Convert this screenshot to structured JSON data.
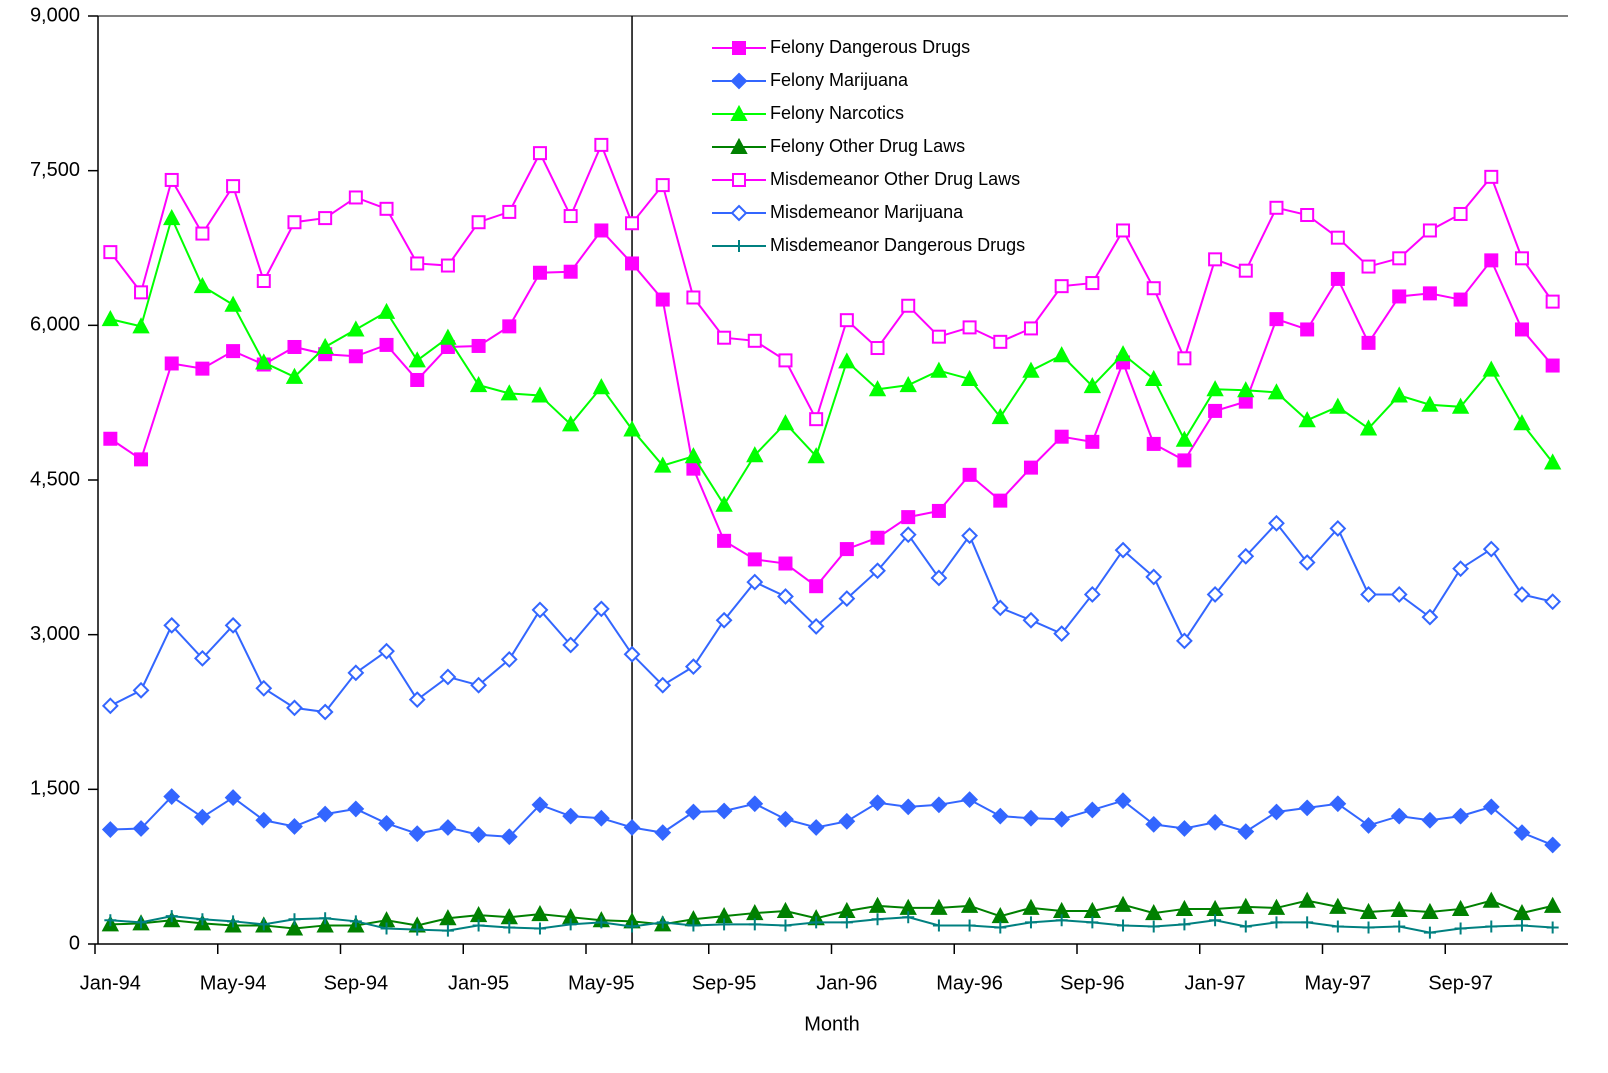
{
  "chart_data": {
    "type": "line",
    "x_label": "Month",
    "categories": [
      "Jan-94",
      null,
      null,
      null,
      "May-94",
      null,
      null,
      null,
      "Sep-94",
      null,
      null,
      null,
      "Jan-95",
      null,
      null,
      null,
      "May-95",
      null,
      null,
      null,
      "Sep-95",
      null,
      null,
      null,
      "Jan-96",
      null,
      null,
      null,
      "May-96",
      null,
      null,
      null,
      "Sep-96",
      null,
      null,
      null,
      "Jan-97",
      null,
      null,
      null,
      "May-97",
      null,
      null,
      null,
      "Sep-97",
      null,
      null,
      null
    ],
    "ylim": [
      0,
      9000
    ],
    "yticks": [
      0,
      {
        "value": 1500,
        "label": "1,500"
      },
      {
        "value": 3000,
        "label": "3,000"
      },
      {
        "value": 4500,
        "label": "4,500"
      },
      {
        "value": 6000,
        "label": "6,000"
      },
      {
        "value": 7500,
        "label": "7,500"
      },
      {
        "value": 9000,
        "label": "9,000"
      }
    ],
    "series": [
      {
        "name": "Felony Dangerous Drugs",
        "color": "#ff00ff",
        "marker": "square",
        "values": [
          4900,
          4700,
          5630,
          5580,
          5750,
          5620,
          5790,
          5720,
          5700,
          5810,
          5470,
          5790,
          5800,
          5990,
          6510,
          6520,
          6920,
          6600,
          6250,
          4610,
          3910,
          3730,
          3690,
          3470,
          3830,
          3940,
          4140,
          4200,
          4550,
          4300,
          4620,
          4920,
          4870,
          5640,
          4850,
          4690,
          5170,
          5260,
          6060,
          5960,
          6450,
          5830,
          6280,
          6310,
          6250,
          6630,
          5960,
          5610
        ]
      },
      {
        "name": "Felony Marijuana",
        "color": "#3366ff",
        "marker": "diamond",
        "values": [
          1110,
          1120,
          1430,
          1230,
          1420,
          1200,
          1140,
          1260,
          1310,
          1170,
          1070,
          1130,
          1060,
          1040,
          1350,
          1240,
          1220,
          1130,
          1080,
          1280,
          1290,
          1360,
          1210,
          1130,
          1190,
          1370,
          1330,
          1350,
          1400,
          1240,
          1220,
          1210,
          1300,
          1390,
          1160,
          1120,
          1180,
          1090,
          1280,
          1320,
          1360,
          1150,
          1240,
          1200,
          1240,
          1330,
          1080,
          960
        ]
      },
      {
        "name": "Felony Narcotics",
        "color": "#00ff00",
        "marker": "triangle",
        "values": [
          6060,
          5990,
          7040,
          6380,
          6200,
          5640,
          5500,
          5790,
          5960,
          6130,
          5660,
          5880,
          5420,
          5340,
          5320,
          5040,
          5400,
          4990,
          4640,
          4730,
          4260,
          4740,
          5050,
          4730,
          5650,
          5380,
          5420,
          5560,
          5480,
          5110,
          5560,
          5710,
          5410,
          5720,
          5480,
          4890,
          5380,
          5370,
          5350,
          5080,
          5210,
          5000,
          5320,
          5230,
          5210,
          5570,
          5050,
          4670
        ]
      },
      {
        "name": "Felony Other Drug Laws",
        "color": "#008000",
        "marker": "triangle",
        "values": [
          190,
          200,
          230,
          200,
          180,
          180,
          150,
          180,
          180,
          230,
          180,
          250,
          280,
          260,
          290,
          260,
          230,
          220,
          190,
          240,
          270,
          300,
          320,
          250,
          320,
          370,
          350,
          350,
          370,
          270,
          350,
          320,
          320,
          380,
          300,
          340,
          340,
          360,
          350,
          420,
          360,
          310,
          330,
          310,
          340,
          420,
          300,
          370
        ]
      },
      {
        "name": "Misdemeanor Other Drug Laws",
        "color": "#ff00ff",
        "marker": "square-open",
        "values": [
          6710,
          6320,
          7410,
          6890,
          7350,
          6430,
          7000,
          7040,
          7240,
          7130,
          6600,
          6580,
          7000,
          7100,
          7670,
          7060,
          7750,
          6990,
          7360,
          6270,
          5880,
          5850,
          5660,
          5090,
          6050,
          5780,
          6190,
          5890,
          5980,
          5840,
          5970,
          6380,
          6410,
          6920,
          6360,
          5680,
          6640,
          6530,
          7140,
          7070,
          6850,
          6570,
          6650,
          6920,
          7080,
          7440,
          6650,
          6230
        ]
      },
      {
        "name": "Misdemeanor Marijuana",
        "color": "#3366ff",
        "marker": "diamond-open",
        "values": [
          2310,
          2460,
          3090,
          2770,
          3090,
          2480,
          2290,
          2250,
          2630,
          2840,
          2370,
          2590,
          2510,
          2760,
          3240,
          2900,
          3250,
          2810,
          2510,
          2690,
          3140,
          3510,
          3370,
          3080,
          3350,
          3620,
          3970,
          3550,
          3960,
          3260,
          3140,
          3010,
          3390,
          3820,
          3560,
          2940,
          3390,
          3760,
          4080,
          3700,
          4030,
          3390,
          3390,
          3170,
          3640,
          3830,
          3390,
          3320
        ]
      },
      {
        "name": "Misdemeanor Dangerous Drugs",
        "color": "#008080",
        "marker": "plus",
        "values": [
          230,
          210,
          270,
          240,
          220,
          190,
          240,
          250,
          220,
          150,
          140,
          130,
          180,
          160,
          150,
          190,
          210,
          170,
          210,
          180,
          190,
          190,
          180,
          210,
          210,
          240,
          260,
          180,
          180,
          160,
          210,
          230,
          210,
          180,
          170,
          190,
          230,
          170,
          210,
          210,
          170,
          160,
          170,
          110,
          150,
          170,
          180,
          160
        ]
      }
    ]
  }
}
